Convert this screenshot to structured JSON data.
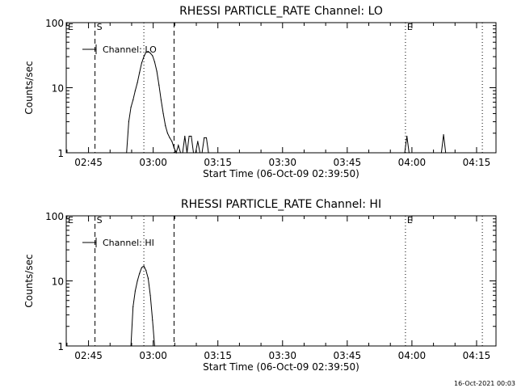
{
  "footer_timestamp": "16-Oct-2021 00:03",
  "chart_data": [
    {
      "type": "line",
      "title": "RHESSI PARTICLE_RATE Channel: LO",
      "xlabel": "Start Time (06-Oct-09 02:39:50)",
      "ylabel": "Counts/sec",
      "yscale": "log",
      "ylim": [
        1,
        100
      ],
      "xlim": [
        "02:39:50",
        "04:19:30"
      ],
      "x_ticks": [
        "02:45",
        "03:00",
        "03:15",
        "03:30",
        "03:45",
        "04:00",
        "04:15"
      ],
      "y_ticks": [
        "1",
        "10",
        "100"
      ],
      "legend": "Channel: LO",
      "markers": [
        {
          "label": "E",
          "time": "02:39:50",
          "style": "dotted"
        },
        {
          "label": "S",
          "time": "02:46:30",
          "style": "dashed"
        },
        {
          "label": "",
          "time": "02:57:50",
          "style": "dotted"
        },
        {
          "label": "",
          "time": "03:04:50",
          "style": "dashed"
        },
        {
          "label": "E",
          "time": "03:58:30",
          "style": "dotted"
        },
        {
          "label": "",
          "time": "04:16:20",
          "style": "dotted"
        }
      ],
      "series": [
        {
          "x": [
            "02:53:50",
            "02:54:20",
            "02:54:50",
            "02:55:20",
            "02:55:50",
            "02:56:20",
            "02:56:50",
            "02:57:20",
            "02:57:50",
            "02:58:20",
            "02:58:50",
            "02:59:20",
            "02:59:50",
            "03:00:20",
            "03:00:50",
            "03:01:20",
            "03:01:50",
            "03:02:20",
            "03:02:50",
            "03:03:20",
            "03:03:50",
            "03:04:20",
            "03:04:50",
            "03:05:20",
            "03:05:50",
            "03:06:20",
            "03:06:50",
            "03:07:20",
            "03:07:50",
            "03:08:20",
            "03:08:50",
            "03:09:20",
            "03:09:50",
            "03:10:20",
            "03:10:50",
            "03:11:20",
            "03:11:50",
            "03:12:20",
            "03:12:50",
            "03:58:20",
            "03:58:50",
            "03:59:20",
            "04:06:50",
            "04:07:20",
            "04:07:50"
          ],
          "y": [
            1,
            3,
            5,
            6.5,
            9,
            12,
            17,
            24,
            30,
            35,
            36,
            34,
            31,
            25,
            18,
            11,
            6.5,
            4,
            2.6,
            2,
            1.7,
            1.5,
            1.2,
            1,
            1.3,
            1,
            1,
            1.8,
            1,
            1.8,
            1.8,
            1,
            1,
            1.5,
            1,
            1,
            1.7,
            1.7,
            1,
            1,
            1.8,
            1,
            1,
            1.9,
            1
          ]
        }
      ]
    },
    {
      "type": "line",
      "title": "RHESSI PARTICLE_RATE Channel: HI",
      "xlabel": "Start Time (06-Oct-09 02:39:50)",
      "ylabel": "Counts/sec",
      "yscale": "log",
      "ylim": [
        1,
        100
      ],
      "xlim": [
        "02:39:50",
        "04:19:30"
      ],
      "x_ticks": [
        "02:45",
        "03:00",
        "03:15",
        "03:30",
        "03:45",
        "04:00",
        "04:15"
      ],
      "y_ticks": [
        "1",
        "10",
        "100"
      ],
      "legend": "Channel: HI",
      "markers": [
        {
          "label": "E",
          "time": "02:39:50",
          "style": "dotted"
        },
        {
          "label": "S",
          "time": "02:46:30",
          "style": "dashed"
        },
        {
          "label": "",
          "time": "02:57:50",
          "style": "dotted"
        },
        {
          "label": "",
          "time": "03:04:50",
          "style": "dashed"
        },
        {
          "label": "E",
          "time": "03:58:30",
          "style": "dotted"
        },
        {
          "label": "",
          "time": "04:16:20",
          "style": "dotted"
        }
      ],
      "series": [
        {
          "x": [
            "02:54:50",
            "02:55:20",
            "02:55:50",
            "02:56:20",
            "02:56:50",
            "02:57:20",
            "02:57:50",
            "02:58:20",
            "02:58:50",
            "02:59:20",
            "02:59:50",
            "03:00:20"
          ],
          "y": [
            1,
            4,
            7,
            10,
            13,
            16,
            17,
            14.5,
            11,
            6,
            2.5,
            1
          ]
        }
      ]
    }
  ]
}
